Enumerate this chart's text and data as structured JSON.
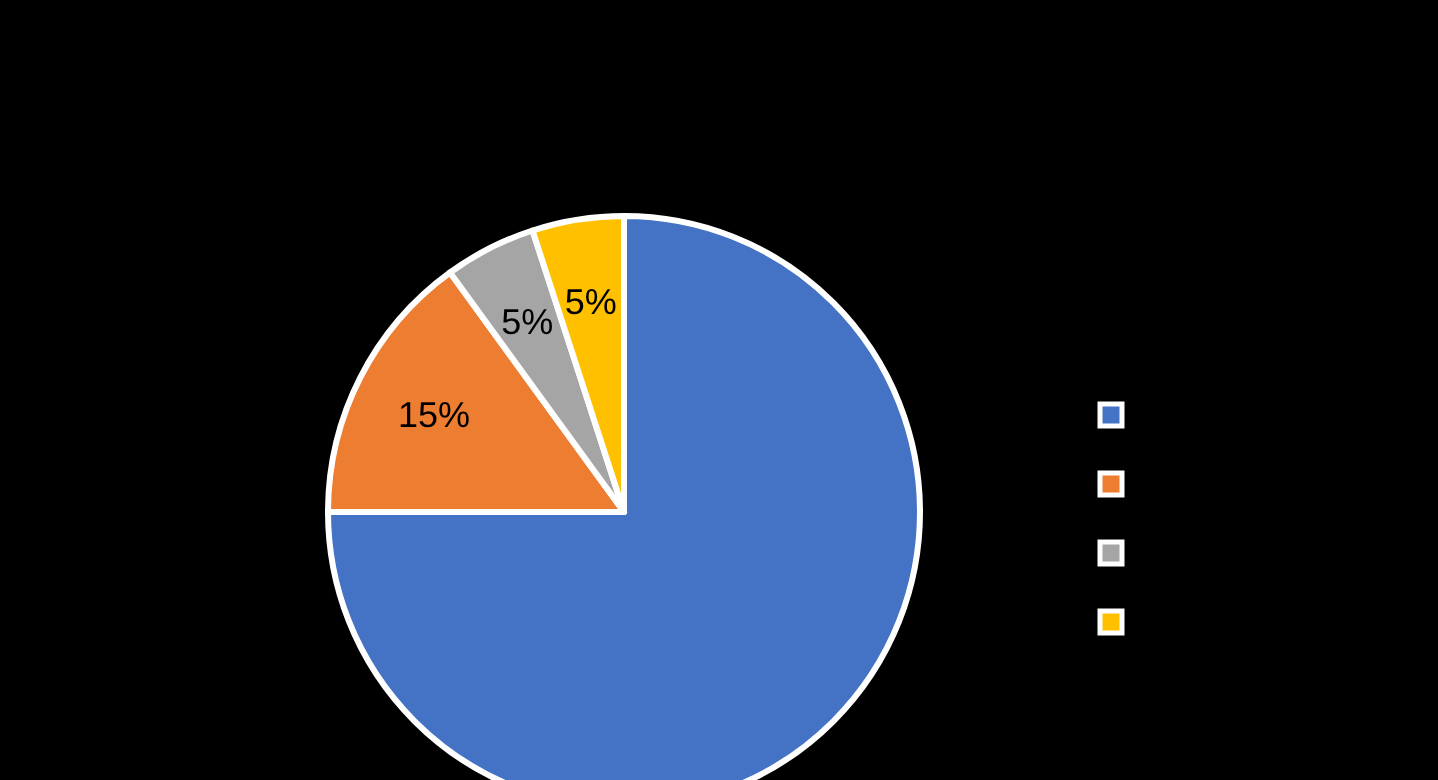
{
  "chart_data": {
    "type": "pie",
    "categories": [
      null,
      null,
      null,
      null
    ],
    "values": [
      75,
      15,
      5,
      5
    ],
    "colors": [
      "#4472c4",
      "#ed7d31",
      "#a5a5a5",
      "#ffc000"
    ],
    "value_labels": [
      null,
      "15%",
      "5%",
      "5%"
    ]
  }
}
